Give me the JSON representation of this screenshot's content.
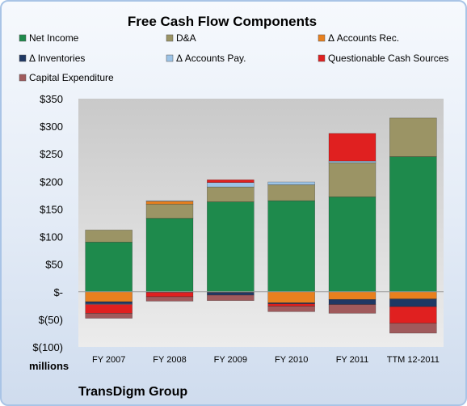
{
  "chart_data": {
    "type": "bar",
    "stacked": true,
    "title": "Free Cash Flow Components",
    "categories": [
      "FY 2007",
      "FY 2008",
      "FY 2009",
      "FY 2010",
      "FY 2011",
      "TTM 12-2011"
    ],
    "ylim": [
      -100,
      350
    ],
    "yticks": [
      350,
      300,
      250,
      200,
      150,
      100,
      50,
      0,
      -50,
      -100
    ],
    "ytick_labels": [
      "$350",
      "$300",
      "$250",
      "$200",
      "$150",
      "$100",
      "$50",
      "$-",
      "$(50)",
      "$(100)"
    ],
    "ylabel": "millions",
    "grid": false,
    "legend_position": "top",
    "series": [
      {
        "name": "Net Income",
        "color": "#1e8a4c",
        "values": [
          90,
          133,
          163,
          165,
          172,
          245
        ]
      },
      {
        "name": "D&A",
        "color": "#9b9465",
        "values": [
          22,
          26,
          27,
          29,
          62,
          70
        ]
      },
      {
        "name": "Δ Accounts Rec.",
        "color": "#e8801e",
        "values": [
          -18,
          5,
          -1,
          -20,
          -14,
          -13
        ]
      },
      {
        "name": "Δ Inventories",
        "color": "#1f3864",
        "values": [
          -4,
          -1,
          -5,
          -2,
          -9,
          -14
        ]
      },
      {
        "name": "Δ Accounts Pay.",
        "color": "#9cc3e6",
        "values": [
          -1,
          1,
          8,
          5,
          3,
          0
        ]
      },
      {
        "name": "Questionable Cash Sources",
        "color": "#e02020",
        "values": [
          -16,
          -8,
          5,
          -4,
          50,
          -30
        ]
      },
      {
        "name": "Capital Expenditure",
        "color": "#a05a5c",
        "values": [
          -9,
          -8,
          -10,
          -10,
          -16,
          -18
        ]
      }
    ]
  },
  "footer": {
    "unit_label": "millions",
    "company": "TransDigm Group"
  }
}
